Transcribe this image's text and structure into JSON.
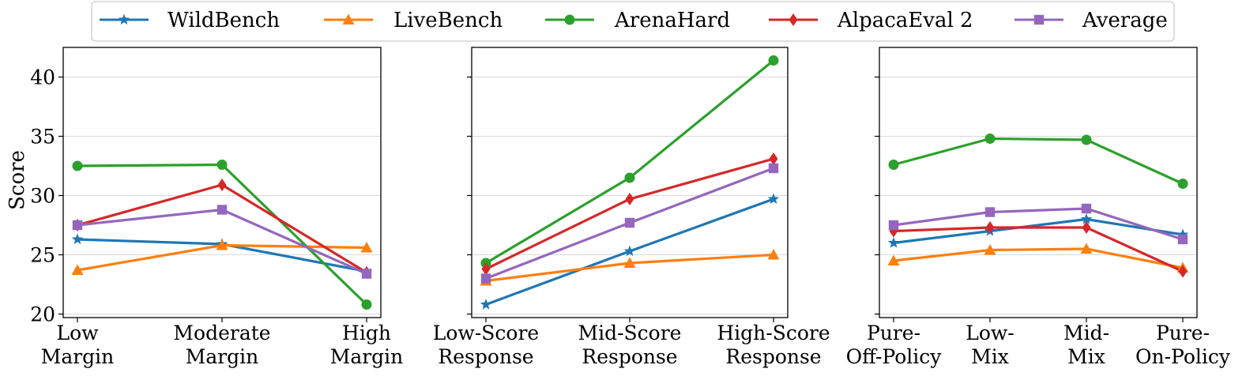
{
  "legend": {
    "items": [
      {
        "name": "WildBench",
        "color": "#1f77b4",
        "marker": "star"
      },
      {
        "name": "LiveBench",
        "color": "#ff7f0e",
        "marker": "triangle"
      },
      {
        "name": "ArenaHard",
        "color": "#2ca02c",
        "marker": "circle"
      },
      {
        "name": "AlpacaEval 2",
        "color": "#d62728",
        "marker": "diamond"
      },
      {
        "name": "Average",
        "color": "#9467bd",
        "marker": "square"
      }
    ]
  },
  "chart_data": [
    {
      "type": "line",
      "title": "",
      "xlabel": "",
      "ylabel": "Score",
      "ylim": [
        19.7,
        42.5
      ],
      "yticks": [
        20,
        25,
        30,
        35,
        40
      ],
      "grid": "horizontal",
      "categories": [
        [
          "Low",
          "Margin"
        ],
        [
          "Moderate",
          "Margin"
        ],
        [
          "High",
          "Margin"
        ]
      ],
      "series": [
        {
          "name": "WildBench",
          "values": [
            26.3,
            25.9,
            23.6
          ]
        },
        {
          "name": "LiveBench",
          "values": [
            23.7,
            25.8,
            25.6
          ]
        },
        {
          "name": "ArenaHard",
          "values": [
            32.5,
            32.6,
            20.8
          ]
        },
        {
          "name": "AlpacaEval 2",
          "values": [
            27.5,
            30.9,
            23.5
          ]
        },
        {
          "name": "Average",
          "values": [
            27.5,
            28.8,
            23.4
          ]
        }
      ]
    },
    {
      "type": "line",
      "title": "",
      "xlabel": "",
      "ylabel": "",
      "ylim": [
        19.7,
        42.5
      ],
      "yticks": [
        20,
        25,
        30,
        35,
        40
      ],
      "grid": "horizontal",
      "categories": [
        [
          "Low-Score",
          "Response"
        ],
        [
          "Mid-Score",
          "Response"
        ],
        [
          "High-Score",
          "Response"
        ]
      ],
      "series": [
        {
          "name": "WildBench",
          "values": [
            20.8,
            25.3,
            29.7
          ]
        },
        {
          "name": "LiveBench",
          "values": [
            22.8,
            24.3,
            25.0
          ]
        },
        {
          "name": "ArenaHard",
          "values": [
            24.3,
            31.5,
            41.4
          ]
        },
        {
          "name": "AlpacaEval 2",
          "values": [
            23.8,
            29.7,
            33.1
          ]
        },
        {
          "name": "Average",
          "values": [
            23.0,
            27.7,
            32.3
          ]
        }
      ]
    },
    {
      "type": "line",
      "title": "",
      "xlabel": "",
      "ylabel": "",
      "ylim": [
        19.7,
        42.5
      ],
      "yticks": [
        20,
        25,
        30,
        35,
        40
      ],
      "grid": "horizontal",
      "categories": [
        [
          "Pure-",
          "Off-Policy"
        ],
        [
          "Low-",
          "Mix"
        ],
        [
          "Mid-",
          "Mix"
        ],
        [
          "Pure-",
          "On-Policy"
        ]
      ],
      "series": [
        {
          "name": "WildBench",
          "values": [
            26.0,
            27.0,
            28.0,
            26.7
          ]
        },
        {
          "name": "LiveBench",
          "values": [
            24.5,
            25.4,
            25.5,
            23.9
          ]
        },
        {
          "name": "ArenaHard",
          "values": [
            32.6,
            34.8,
            34.7,
            31.0
          ]
        },
        {
          "name": "AlpacaEval 2",
          "values": [
            27.0,
            27.3,
            27.3,
            23.6
          ]
        },
        {
          "name": "Average",
          "values": [
            27.5,
            28.6,
            28.9,
            26.3
          ]
        }
      ]
    }
  ]
}
